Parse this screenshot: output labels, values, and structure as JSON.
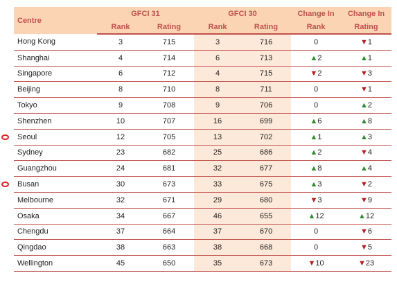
{
  "table": {
    "header": {
      "centre": "Centre",
      "groups": [
        "GFCI 31",
        "GFCI 30",
        "Change In",
        "Change In"
      ],
      "sub": [
        "Rank",
        "Rating",
        "Rank",
        "Rating",
        "Rank",
        "Rating"
      ]
    },
    "rows": [
      [
        "Hong Kong",
        3,
        715,
        3,
        716,
        0,
        {
          "arrow": "▼",
          "value": 1
        }
      ],
      [
        "Shanghai",
        4,
        714,
        6,
        713,
        {
          "arrow": "▲",
          "value": 2
        },
        {
          "arrow": "▲",
          "value": 1
        }
      ],
      [
        "Singapore",
        6,
        712,
        4,
        715,
        {
          "arrow": "▼",
          "value": 2
        },
        {
          "arrow": "▼",
          "value": 3
        }
      ],
      [
        "Beijing",
        8,
        710,
        8,
        711,
        0,
        {
          "arrow": "▼",
          "value": 1
        }
      ],
      [
        "Tokyo",
        9,
        708,
        9,
        706,
        0,
        {
          "arrow": "▲",
          "value": 2
        }
      ],
      [
        "Shenzhen",
        10,
        707,
        16,
        699,
        {
          "arrow": "▲",
          "value": 6
        },
        {
          "arrow": "▲",
          "value": 8
        }
      ],
      [
        "Seoul",
        12,
        705,
        13,
        702,
        {
          "arrow": "▲",
          "value": 1
        },
        {
          "arrow": "▲",
          "value": 3
        }
      ],
      [
        "Sydney",
        23,
        682,
        25,
        686,
        {
          "arrow": "▲",
          "value": 2
        },
        {
          "arrow": "▼",
          "value": 4
        }
      ],
      [
        "Guangzhou",
        24,
        681,
        32,
        677,
        {
          "arrow": "▲",
          "value": 8
        },
        {
          "arrow": "▲",
          "value": 4
        }
      ],
      [
        "Busan",
        30,
        673,
        33,
        675,
        {
          "arrow": "▲",
          "value": 3
        },
        {
          "arrow": "▼",
          "value": 2
        }
      ],
      [
        "Melbourne",
        32,
        671,
        29,
        680,
        {
          "arrow": "▼",
          "value": 3
        },
        {
          "arrow": "▼",
          "value": 9
        }
      ],
      [
        "Osaka",
        34,
        667,
        46,
        655,
        {
          "arrow": "▲",
          "value": 12
        },
        {
          "arrow": "▲",
          "value": 12
        }
      ],
      [
        "Chengdu",
        37,
        664,
        37,
        670,
        0,
        {
          "arrow": "▼",
          "value": 6
        }
      ],
      [
        "Qingdao",
        38,
        663,
        38,
        668,
        0,
        {
          "arrow": "▼",
          "value": 5
        }
      ],
      [
        "Wellington",
        45,
        650,
        35,
        673,
        {
          "arrow": "▼",
          "value": 10
        },
        {
          "arrow": "▼",
          "value": 23
        }
      ]
    ]
  }
}
